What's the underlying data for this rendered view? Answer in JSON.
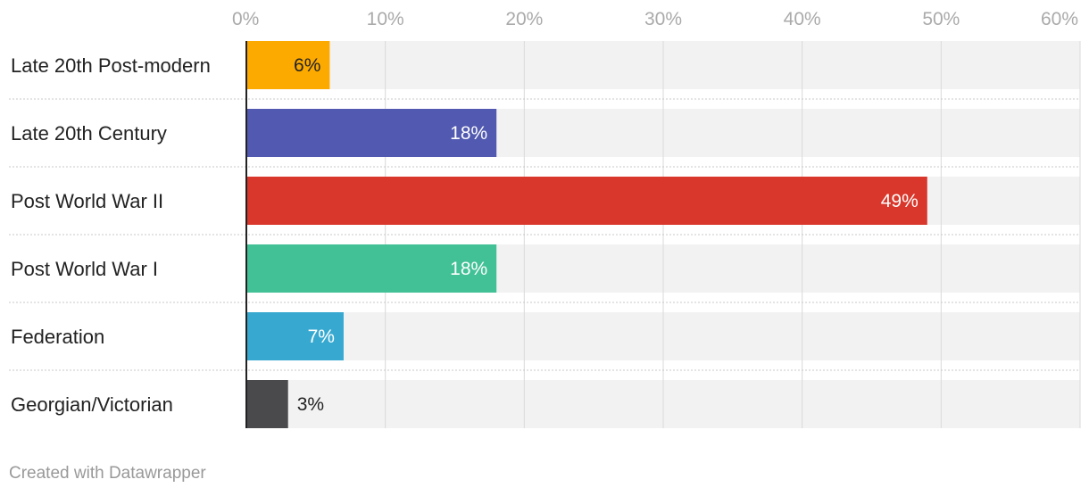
{
  "chart_data": {
    "type": "bar",
    "orientation": "horizontal",
    "xlim": [
      0,
      60
    ],
    "ticks": [
      0,
      10,
      20,
      30,
      40,
      50,
      60
    ],
    "tick_labels": [
      "0%",
      "10%",
      "20%",
      "30%",
      "40%",
      "50%",
      "60%"
    ],
    "categories": [
      "Late 20th Post-modern",
      "Late 20th Century",
      "Post World War II",
      "Post World War I",
      "Federation",
      "Georgian/Victorian"
    ],
    "values": [
      6,
      18,
      49,
      18,
      7,
      3
    ],
    "value_labels": [
      "6%",
      "18%",
      "49%",
      "18%",
      "7%",
      "3%"
    ],
    "colors": [
      "#fdaa00",
      "#5159b0",
      "#d9372b",
      "#42c197",
      "#37a9d1",
      "#4a4a4d"
    ],
    "label_colors": [
      "#222222",
      "#ffffff",
      "#ffffff",
      "#ffffff",
      "#ffffff",
      "#222222"
    ],
    "background_bar_color": "#f2f2f2",
    "grid": true
  },
  "footer": {
    "credit": "Created with Datawrapper"
  }
}
